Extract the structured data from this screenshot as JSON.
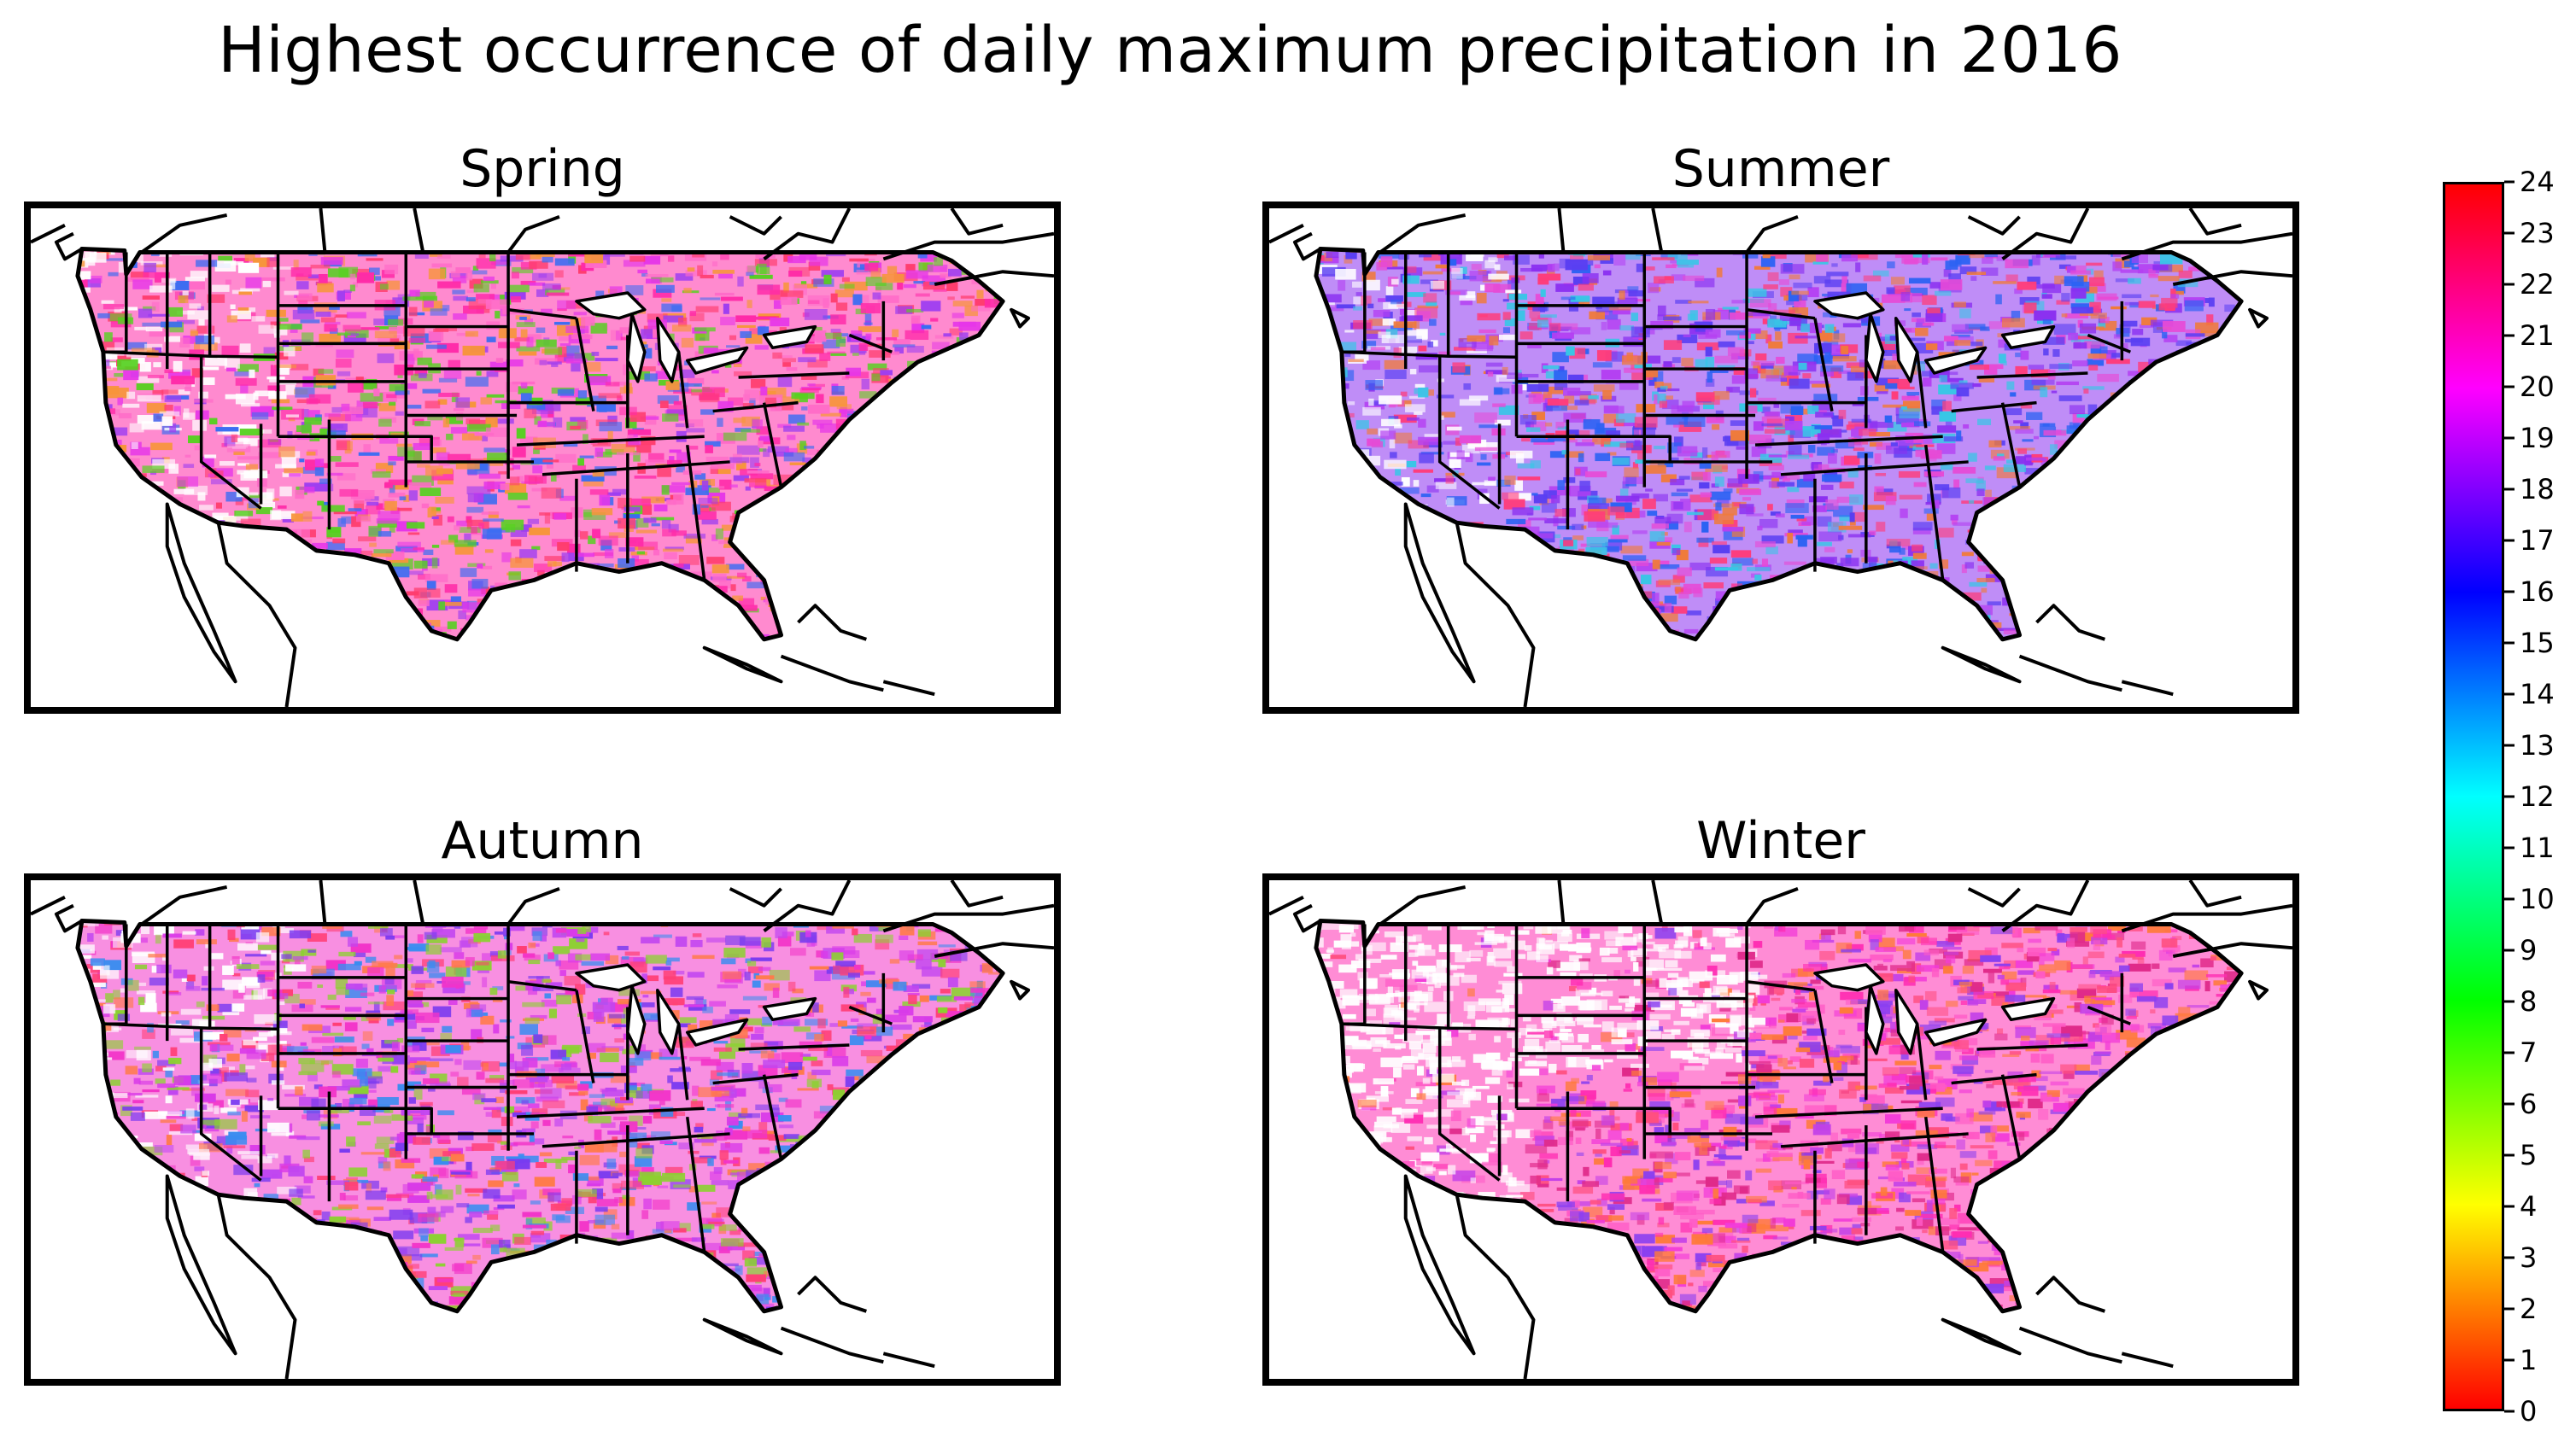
{
  "title": "Highest occurrence of daily maximum precipitation in 2016",
  "panels": [
    {
      "season": "Spring",
      "palette": [
        "#ff2aa8",
        "#e636e8",
        "#9e3ef0",
        "#ff3d6e",
        "#55d11f",
        "#f7953a",
        "#ff6ac8",
        "#3a6cf2"
      ]
    },
    {
      "season": "Summer",
      "palette": [
        "#8a2ff0",
        "#5a3ff2",
        "#e64ad6",
        "#ff3c7a",
        "#2b62f3",
        "#f07a3a",
        "#b43ff2",
        "#38c6e6"
      ]
    },
    {
      "season": "Autumn",
      "palette": [
        "#f233c8",
        "#d93ae8",
        "#7a3af0",
        "#ff3f76",
        "#3a8cf0",
        "#ff7a4a",
        "#c045f0",
        "#8bd130"
      ]
    },
    {
      "season": "Winter",
      "palette": [
        "#ff2db2",
        "#f23ad8",
        "#e02a8a",
        "#ff4f80",
        "#c23fe8",
        "#ff7a3a",
        "#ff5ac6",
        "#8a3ff0"
      ]
    }
  ],
  "colorbar": {
    "min": 0,
    "max": 24,
    "ticks": [
      "0",
      "1",
      "2",
      "3",
      "4",
      "5",
      "6",
      "7",
      "8",
      "9",
      "10",
      "11",
      "12",
      "13",
      "14",
      "15",
      "16",
      "17",
      "18",
      "19",
      "20",
      "21",
      "22",
      "23",
      "24"
    ],
    "colormap": [
      "#ff0000",
      "#ffff00",
      "#00ff00",
      "#00ffff",
      "#0000ff",
      "#ff00ff",
      "#ff0000"
    ]
  }
}
